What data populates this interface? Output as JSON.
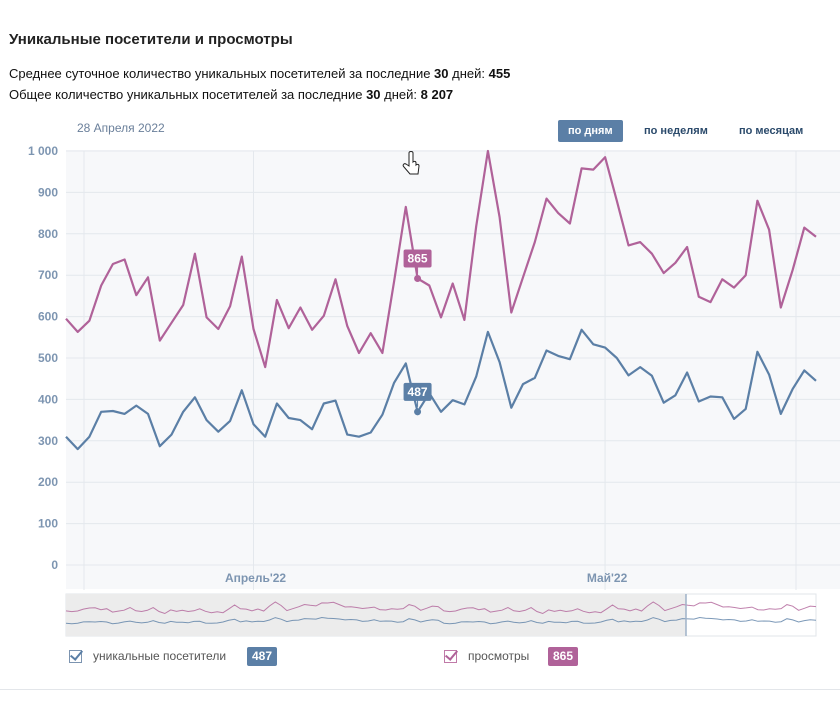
{
  "page": {
    "title": "Уникальные посетители и просмотры",
    "stat1_prefix": "Среднее суточное количество уникальных посетителей за последние ",
    "stat1_days": "30",
    "stat1_mid": " дней: ",
    "stat1_value": "455",
    "stat2_prefix": "Общее количество уникальных посетителей за последние ",
    "stat2_days": "30",
    "stat2_mid": " дней: ",
    "stat2_value": "8 207",
    "date_label": "28 Апреля 2022",
    "buttons": {
      "days": "по дням",
      "weeks": "по неделям",
      "months": "по месяцам"
    }
  },
  "legend": {
    "unique_label": "уникальные посетители",
    "unique_value": "487",
    "views_label": "просмотры",
    "views_value": "865"
  },
  "colors": {
    "unique": "#5b7fa6",
    "views": "#b06299",
    "grid": "#e4e8ed",
    "axis_text": "#7d95b1"
  },
  "chart_data": {
    "type": "line",
    "ylim": [
      0,
      1000
    ],
    "yticks": [
      0,
      100,
      200,
      300,
      400,
      500,
      600,
      700,
      800,
      900,
      1000
    ],
    "ytick_labels": [
      "0",
      "100",
      "200",
      "300",
      "400",
      "500",
      "600",
      "700",
      "800",
      "900",
      "1 000"
    ],
    "x_month_labels": [
      {
        "label": "Апрель'22",
        "index": 16
      },
      {
        "label": "Май'22",
        "index": 46
      }
    ],
    "highlight_index": 30,
    "highlight_date": "28 Апреля 2022",
    "series": [
      {
        "name": "уникальные посетители",
        "values": [
          310,
          280,
          310,
          370,
          372,
          365,
          385,
          365,
          287,
          315,
          370,
          405,
          350,
          322,
          348,
          422,
          340,
          310,
          390,
          355,
          350,
          328,
          390,
          397,
          315,
          310,
          320,
          363,
          440,
          487,
          370,
          415,
          370,
          398,
          388,
          455,
          563,
          490,
          380,
          437,
          452,
          518,
          505,
          497,
          568,
          533,
          525,
          500,
          458,
          478,
          457,
          392,
          410,
          465,
          395,
          407,
          405,
          353,
          377,
          515,
          460,
          365,
          425,
          470,
          445
        ]
      },
      {
        "name": "просмотры",
        "values": [
          595,
          563,
          590,
          675,
          727,
          738,
          652,
          695,
          542,
          585,
          628,
          752,
          598,
          570,
          625,
          745,
          570,
          478,
          640,
          572,
          622,
          568,
          602,
          690,
          577,
          512,
          560,
          512,
          685,
          865,
          692,
          675,
          598,
          680,
          592,
          818,
          1000,
          840,
          610,
          695,
          780,
          885,
          850,
          825,
          958,
          955,
          985,
          880,
          772,
          780,
          752,
          705,
          730,
          768,
          648,
          635,
          690,
          670,
          700,
          880,
          810,
          622,
          712,
          815,
          793
        ]
      }
    ],
    "tooltips": [
      {
        "series": "просмотры",
        "value": 865
      },
      {
        "series": "уникальные посетители",
        "value": 487
      }
    ]
  }
}
